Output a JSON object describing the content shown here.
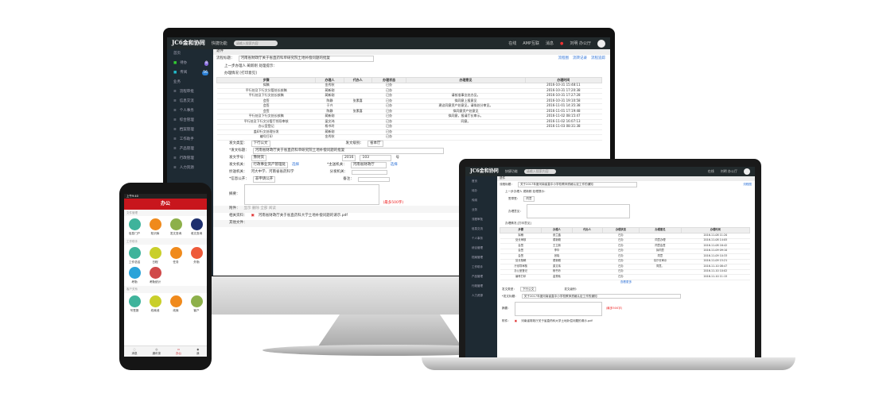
{
  "app": {
    "logo": "JC6金和协同",
    "menu": "快捷功能",
    "search_placeholder": "请输入搜索内容",
    "top_links": [
      "在线",
      "AMP互联",
      "消息"
    ],
    "user": "刘明 办公厅"
  },
  "colors": {
    "topbar": "#222a2c",
    "sidebar": "#1e2a33",
    "accent": "#c8161d",
    "link": "#2a6fd6"
  },
  "sidebar": {
    "section1": "首页",
    "items1": [
      {
        "label": "待办",
        "badge": "8"
      },
      {
        "label": "传阅",
        "badge": "56"
      }
    ],
    "section2": "业务",
    "items2": [
      "流程审批",
      "信息交流",
      "个人事务",
      "综合管理",
      "档案管理",
      "工作助手",
      "产品管理",
      "行政管理",
      "人力资源"
    ]
  },
  "main": {
    "breadcrumb": "退件",
    "title_label": "流程标题：",
    "title_value": "河南省财政厅关于省直药科单研究院土地补偿问题的批复",
    "actions": [
      "流程图",
      "流转记录",
      "流程追踪"
    ],
    "prev_step": "上一步办理人 蔺新刚 处理提示：",
    "section": "办理情况 [打印意见]",
    "table": {
      "headers": [
        "步骤",
        "办理人",
        "代办人",
        "办理状态",
        "办理意见",
        "办理时间"
      ],
      "rows": [
        [
          "拟稿",
          "金秀秋",
          "",
          "已办",
          "",
          "2016-10-31 15:48:11"
        ],
        [
          "平行处及下行文分管处长核稿",
          "蔺新刚",
          "",
          "已办",
          "",
          "2016-10-31 17:20:38"
        ],
        [
          "平行处及下行文处长核稿",
          "蔺新刚",
          "",
          "已办",
          "请核准事业处办见。",
          "2016-10-31 17:27:28"
        ],
        [
          "会签",
          "陈静",
          "张素喜",
          "已办",
          "拟同意上报意见",
          "2016-10-31 19:10:58"
        ],
        [
          "会签",
          "于兴",
          "",
          "已办",
          "建议同意资产处意见，请拟处分审见。",
          "2016-11-01 14:35:38"
        ],
        [
          "会签",
          "陈静",
          "张素喜",
          "已办",
          "拟同意资产处意见",
          "2016-11-01 17:19:48"
        ],
        [
          "平行处及下行文处长核稿",
          "蔺新刚",
          "",
          "已办",
          "拟同意，报请厅长审示。",
          "2016-11-02 08:15:47"
        ],
        [
          "平行处及下行文分管厅领导审核",
          "梁文玮",
          "",
          "已办",
          "同意。",
          "2016-11-02 16:07:13"
        ],
        [
          "办公室登记",
          "杨书玲",
          "",
          "已办",
          "",
          "2016-11-03 08:31:38"
        ],
        [
          "盖印行文处理分发",
          "蔺新刚",
          "",
          "已办",
          "",
          ""
        ],
        [
          "编号打印",
          "金秀秋",
          "",
          "已办",
          "",
          ""
        ]
      ]
    },
    "form": {
      "doc_type_label": "发文类型：",
      "doc_type": "下行公文",
      "doc_level_label": "发文级别：",
      "doc_level": "省本厅",
      "subject_label": "*发文标题：",
      "subject": "河南省财政厅关于省直药科单研究院土地补偿问题的批复",
      "number_label": "发文字号：",
      "number": "豫财资",
      "year": "2016",
      "num": "103",
      "num_unit": "号",
      "org_label": "发文机关：",
      "org": "行政事业资产管理处",
      "select": "选择",
      "main_label": "*主送机关：",
      "main": "河南省财政厅",
      "copy_label": "抄送机关：",
      "copy": "河大中学、河南省省药科学",
      "cc_label": "分发机关：",
      "public_label": "*信息公开：",
      "public": "非申请公开",
      "remark_label": "备注：",
      "summary_label": "摘要：",
      "limit": "(最多500字)",
      "attach_label": "附件：",
      "attach_ops": "显示 删除 全部 阅读",
      "material_label": "相关资料：",
      "file": "河南省财政厅关于省直药科大学土地补偿问题的请示.pdf",
      "other_label": "其他文件："
    }
  },
  "laptop": {
    "title_value": "关于2017年度河南省直中小学校教师资格认定工作的通知",
    "sign_label": "签章签：",
    "sign": "同意",
    "opinion_label": "办理意见：",
    "section": "办理情况 [打印意见]",
    "link_more": "查看更多",
    "rows": [
      [
        "拟稿",
        "张兰晶",
        "",
        "已办",
        "",
        "2016-11-08 11:20"
      ],
      [
        "处长审核",
        "蔺新刚",
        "",
        "已办",
        "同意办理",
        "2016-11-08 14:05"
      ],
      [
        "会签",
        "王立新",
        "",
        "已办",
        "同意会签",
        "2016-11-08 16:42"
      ],
      [
        "会签",
        "李华",
        "",
        "已办",
        "拟同意",
        "2016-11-09 09:10"
      ],
      [
        "会签",
        "张晓",
        "",
        "已办",
        "同意",
        "2016-11-09 10:33"
      ],
      [
        "处长核稿",
        "蔺新刚",
        "",
        "已办",
        "请厅长审示",
        "2016-11-09 15:21"
      ],
      [
        "厅领导审核",
        "梁文玮",
        "",
        "已办",
        "同意。",
        "2016-11-10 08:47"
      ],
      [
        "办公室登记",
        "杨书玲",
        "",
        "已办",
        "",
        "2016-11-10 10:02"
      ],
      [
        "编号打印",
        "金秀秋",
        "",
        "已办",
        "",
        "2016-11-10 11:15"
      ]
    ]
  },
  "phone": {
    "status": "上午9:40",
    "title": "办公",
    "sections": [
      {
        "label": "文件管理",
        "items": [
          {
            "label": "信息门户",
            "color": "#3fb39b"
          },
          {
            "label": "知识库",
            "color": "#f08a1c"
          },
          {
            "label": "发文查询",
            "color": "#8db04a"
          },
          {
            "label": "收文查询",
            "color": "#1e2f6e"
          }
        ]
      },
      {
        "label": "工作助手",
        "items": [
          {
            "label": "工作总结",
            "color": "#3fb39b"
          },
          {
            "label": "日程",
            "color": "#c9cf2a"
          },
          {
            "label": "任务",
            "color": "#f08a1c"
          },
          {
            "label": "外勤",
            "color": "#ee5a3a"
          },
          {
            "label": "考勤",
            "color": "#2aa3d9"
          },
          {
            "label": "考勤统计",
            "color": "#d04a4a"
          }
        ]
      },
      {
        "label": "客户关系",
        "items": [
          {
            "label": "写签报",
            "color": "#3fb39b"
          },
          {
            "label": "线索池",
            "color": "#c9cf2a"
          },
          {
            "label": "线索",
            "color": "#f08a1c"
          },
          {
            "label": "客户",
            "color": "#8db04a"
          }
        ]
      }
    ],
    "tabs": [
      "消息",
      "通讯录",
      "办公",
      "我"
    ]
  }
}
